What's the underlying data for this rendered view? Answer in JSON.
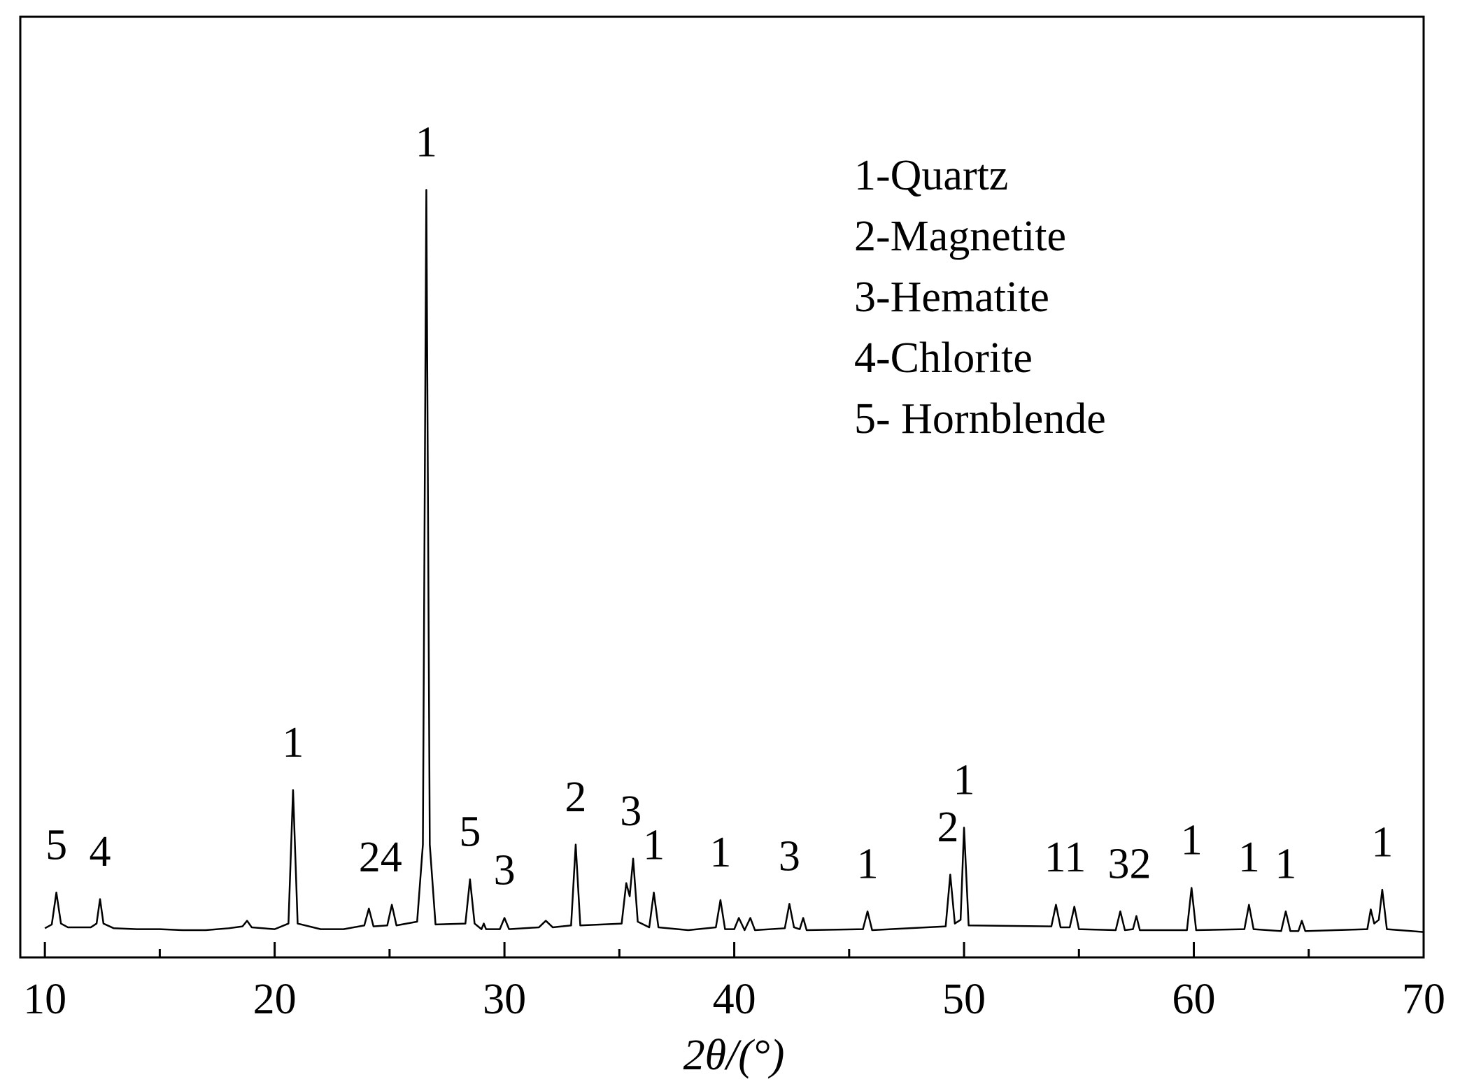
{
  "chart_data": {
    "type": "line",
    "x_label": "2θ/(°)",
    "xlim": [
      8.93,
      70
    ],
    "xticks": [
      10,
      20,
      30,
      40,
      50,
      60,
      70
    ],
    "xminorticks": [
      15,
      25,
      35,
      45,
      55,
      65
    ],
    "ylim": [
      0,
      100
    ],
    "series": [
      {
        "color": "#000000",
        "x": [
          10,
          10.3,
          10.5,
          10.7,
          11,
          12,
          12.25,
          12.4,
          12.55,
          13,
          14,
          15,
          16,
          17,
          18,
          18.6,
          18.8,
          19,
          20,
          20.6,
          20.8,
          21,
          22,
          23,
          23.9,
          24.1,
          24.3,
          24.9,
          25.1,
          25.3,
          26.2,
          26.45,
          26.6,
          26.75,
          27,
          28.3,
          28.5,
          28.7,
          29.0,
          29.1,
          29.2,
          29.8,
          30.0,
          30.2,
          31.5,
          31.8,
          32.1,
          32.9,
          33.1,
          33.3,
          35.1,
          35.3,
          35.45,
          35.6,
          35.8,
          36.3,
          36.5,
          36.7,
          38,
          39.2,
          39.4,
          39.6,
          40.0,
          40.2,
          40.45,
          40.7,
          40.9,
          42.2,
          42.4,
          42.6,
          42.85,
          43.0,
          43.15,
          45.6,
          45.8,
          46,
          49.2,
          49.4,
          49.6,
          49.85,
          50.0,
          50.2,
          53.8,
          54.0,
          54.2,
          54.6,
          54.8,
          55,
          56.6,
          56.8,
          57.0,
          57.35,
          57.5,
          57.65,
          59.7,
          59.9,
          60.1,
          62.2,
          62.4,
          62.6,
          63.8,
          64.0,
          64.2,
          64.55,
          64.7,
          64.85,
          67.55,
          67.7,
          67.85,
          68.05,
          68.2,
          68.4,
          70
        ],
        "values": [
          3.1,
          3.5,
          6.9,
          3.6,
          3.2,
          3.2,
          3.6,
          6.2,
          3.6,
          3.1,
          3.0,
          3.0,
          2.9,
          2.9,
          3.1,
          3.3,
          3.9,
          3.2,
          3.0,
          3.6,
          17.8,
          3.6,
          3.0,
          3.0,
          3.4,
          5.2,
          3.3,
          3.4,
          5.6,
          3.4,
          3.8,
          12,
          81.6,
          12,
          3.5,
          3.6,
          8.3,
          3.6,
          3.0,
          3.6,
          3.0,
          3.0,
          4.2,
          3.0,
          3.2,
          3.9,
          3.2,
          3.4,
          12.0,
          3.4,
          3.6,
          7.9,
          6.5,
          10.5,
          3.8,
          3.2,
          6.9,
          3.2,
          2.9,
          3.2,
          6.1,
          3.0,
          3.0,
          4.2,
          2.9,
          4.2,
          2.9,
          3.1,
          5.7,
          3.2,
          3.0,
          4.2,
          2.9,
          3.0,
          4.9,
          2.9,
          3.3,
          8.8,
          3.6,
          4,
          13.8,
          3.4,
          3.3,
          5.6,
          3.2,
          3.2,
          5.4,
          3.0,
          2.9,
          4.9,
          2.9,
          3.0,
          4.4,
          2.9,
          2.9,
          7.4,
          2.9,
          3.0,
          5.6,
          3.0,
          2.8,
          4.9,
          2.8,
          2.8,
          3.9,
          2.8,
          3.0,
          5.1,
          3.6,
          4,
          7.2,
          3.0,
          2.7
        ]
      }
    ],
    "annotations": [
      {
        "text": "5",
        "x": 10.5
      },
      {
        "text": "4",
        "x": 12.4
      },
      {
        "text": "1",
        "x": 20.8
      },
      {
        "text": "24",
        "x": 24.6
      },
      {
        "text": "1",
        "x": 26.6
      },
      {
        "text": "5",
        "x": 28.5
      },
      {
        "text": "3",
        "x": 30.0
      },
      {
        "text": "2",
        "x": 33.1
      },
      {
        "text": "3",
        "x": 35.5
      },
      {
        "text": "1",
        "x": 36.5
      },
      {
        "text": "1",
        "x": 39.4
      },
      {
        "text": "3",
        "x": 42.4
      },
      {
        "text": "1",
        "x": 45.8
      },
      {
        "text": "2",
        "x": 49.3
      },
      {
        "text": "1",
        "x": 50.0
      },
      {
        "text": "11",
        "x": 54.4
      },
      {
        "text": "32",
        "x": 57.2
      },
      {
        "text": "1",
        "x": 59.9
      },
      {
        "text": "1",
        "x": 62.4
      },
      {
        "text": "1",
        "x": 64.0
      },
      {
        "text": "1",
        "x": 68.2
      }
    ],
    "legend_text": [
      "1-Quartz",
      "2-Magnetite",
      "3-Hematite",
      "4-Chlorite",
      "5- Hornblende"
    ]
  }
}
